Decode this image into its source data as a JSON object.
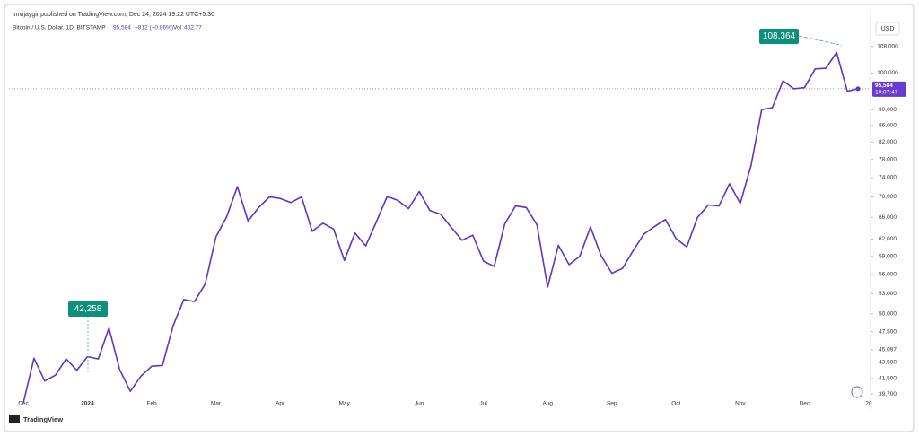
{
  "header": {
    "publisher": "imvijaygir published on TradingView.com, Dec 24, 2024 19:22 UTC+5:30",
    "symbol": "Bitcoin / U.S. Dollar, 1D, BITSTAMP",
    "change": "+812 (+0.86%)",
    "volume_label": "Vol",
    "volume": "402.77",
    "currency": "USD",
    "brand": "TradingView",
    "countdown": "10:07:47"
  },
  "chart_data": {
    "type": "line",
    "log_scale": true,
    "grid": false,
    "categories": [
      "Dec",
      null,
      null,
      null,
      null,
      null,
      "2024",
      null,
      null,
      null,
      null,
      null,
      "Feb",
      null,
      null,
      null,
      null,
      null,
      "Mar",
      null,
      null,
      null,
      null,
      null,
      "Apr",
      null,
      null,
      null,
      null,
      null,
      "May",
      null,
      null,
      null,
      null,
      null,
      null,
      "Jun",
      null,
      null,
      null,
      null,
      null,
      "Jul",
      null,
      null,
      null,
      null,
      null,
      "Aug",
      null,
      null,
      null,
      null,
      null,
      "Sep",
      null,
      null,
      null,
      null,
      null,
      "Oct",
      null,
      null,
      null,
      null,
      null,
      "Nov",
      null,
      null,
      null,
      null,
      null,
      "Dec",
      null,
      null,
      null,
      null,
      null,
      "20"
    ],
    "series": [
      {
        "name": "Bitcoin / U.S. Dollar",
        "color": "#5e35c9",
        "values": [
          38700,
          44000,
          41200,
          41900,
          43900,
          42500,
          44200,
          43900,
          48000,
          42600,
          40000,
          41800,
          43000,
          43100,
          48300,
          52100,
          51800,
          54500,
          62400,
          66100,
          72100,
          65300,
          67900,
          70000,
          69700,
          68900,
          70000,
          63400,
          64900,
          63800,
          58300,
          63100,
          60800,
          65200,
          70100,
          69300,
          67700,
          71100,
          67300,
          66600,
          64100,
          61800,
          62700,
          58200,
          57300,
          64800,
          68200,
          67900,
          64600,
          54000,
          60900,
          57600,
          59000,
          64200,
          59100,
          56200,
          57000,
          60000,
          62900,
          64300,
          65600,
          62100,
          60600,
          66000,
          68400,
          68200,
          72700,
          68700,
          76600,
          90000,
          90500,
          97800,
          95600,
          95900,
          101200,
          101400,
          106100,
          94900,
          95584,
          null
        ]
      }
    ],
    "ylim": [
      38100,
      116600
    ],
    "yticks": [
      {
        "value": 39700,
        "label": "39,700"
      },
      {
        "value": 41500,
        "label": "41,500"
      },
      {
        "value": 43500,
        "label": "43,500"
      },
      {
        "value": 45097,
        "label": "45,097"
      },
      {
        "value": 47500,
        "label": "47,500"
      },
      {
        "value": 50000,
        "label": "50,000"
      },
      {
        "value": 53000,
        "label": "53,000"
      },
      {
        "value": 56000,
        "label": "56,000"
      },
      {
        "value": 59000,
        "label": "59,000"
      },
      {
        "value": 62000,
        "label": "62,000"
      },
      {
        "value": 66000,
        "label": "66,000"
      },
      {
        "value": 70000,
        "label": "70,000"
      },
      {
        "value": 74000,
        "label": "74,000"
      },
      {
        "value": 78000,
        "label": "78,000"
      },
      {
        "value": 82000,
        "label": "82,000"
      },
      {
        "value": 86000,
        "label": "86,000"
      },
      {
        "value": 90000,
        "label": "90,000"
      },
      {
        "value": 100000,
        "label": "100,000"
      },
      {
        "value": 108000,
        "label": "108,000"
      }
    ],
    "last_price": {
      "value": 95584,
      "label": "95,584"
    },
    "annotations": [
      {
        "value": 42258,
        "label": "42,258"
      },
      {
        "value": 108364,
        "label": "108,364"
      }
    ]
  }
}
